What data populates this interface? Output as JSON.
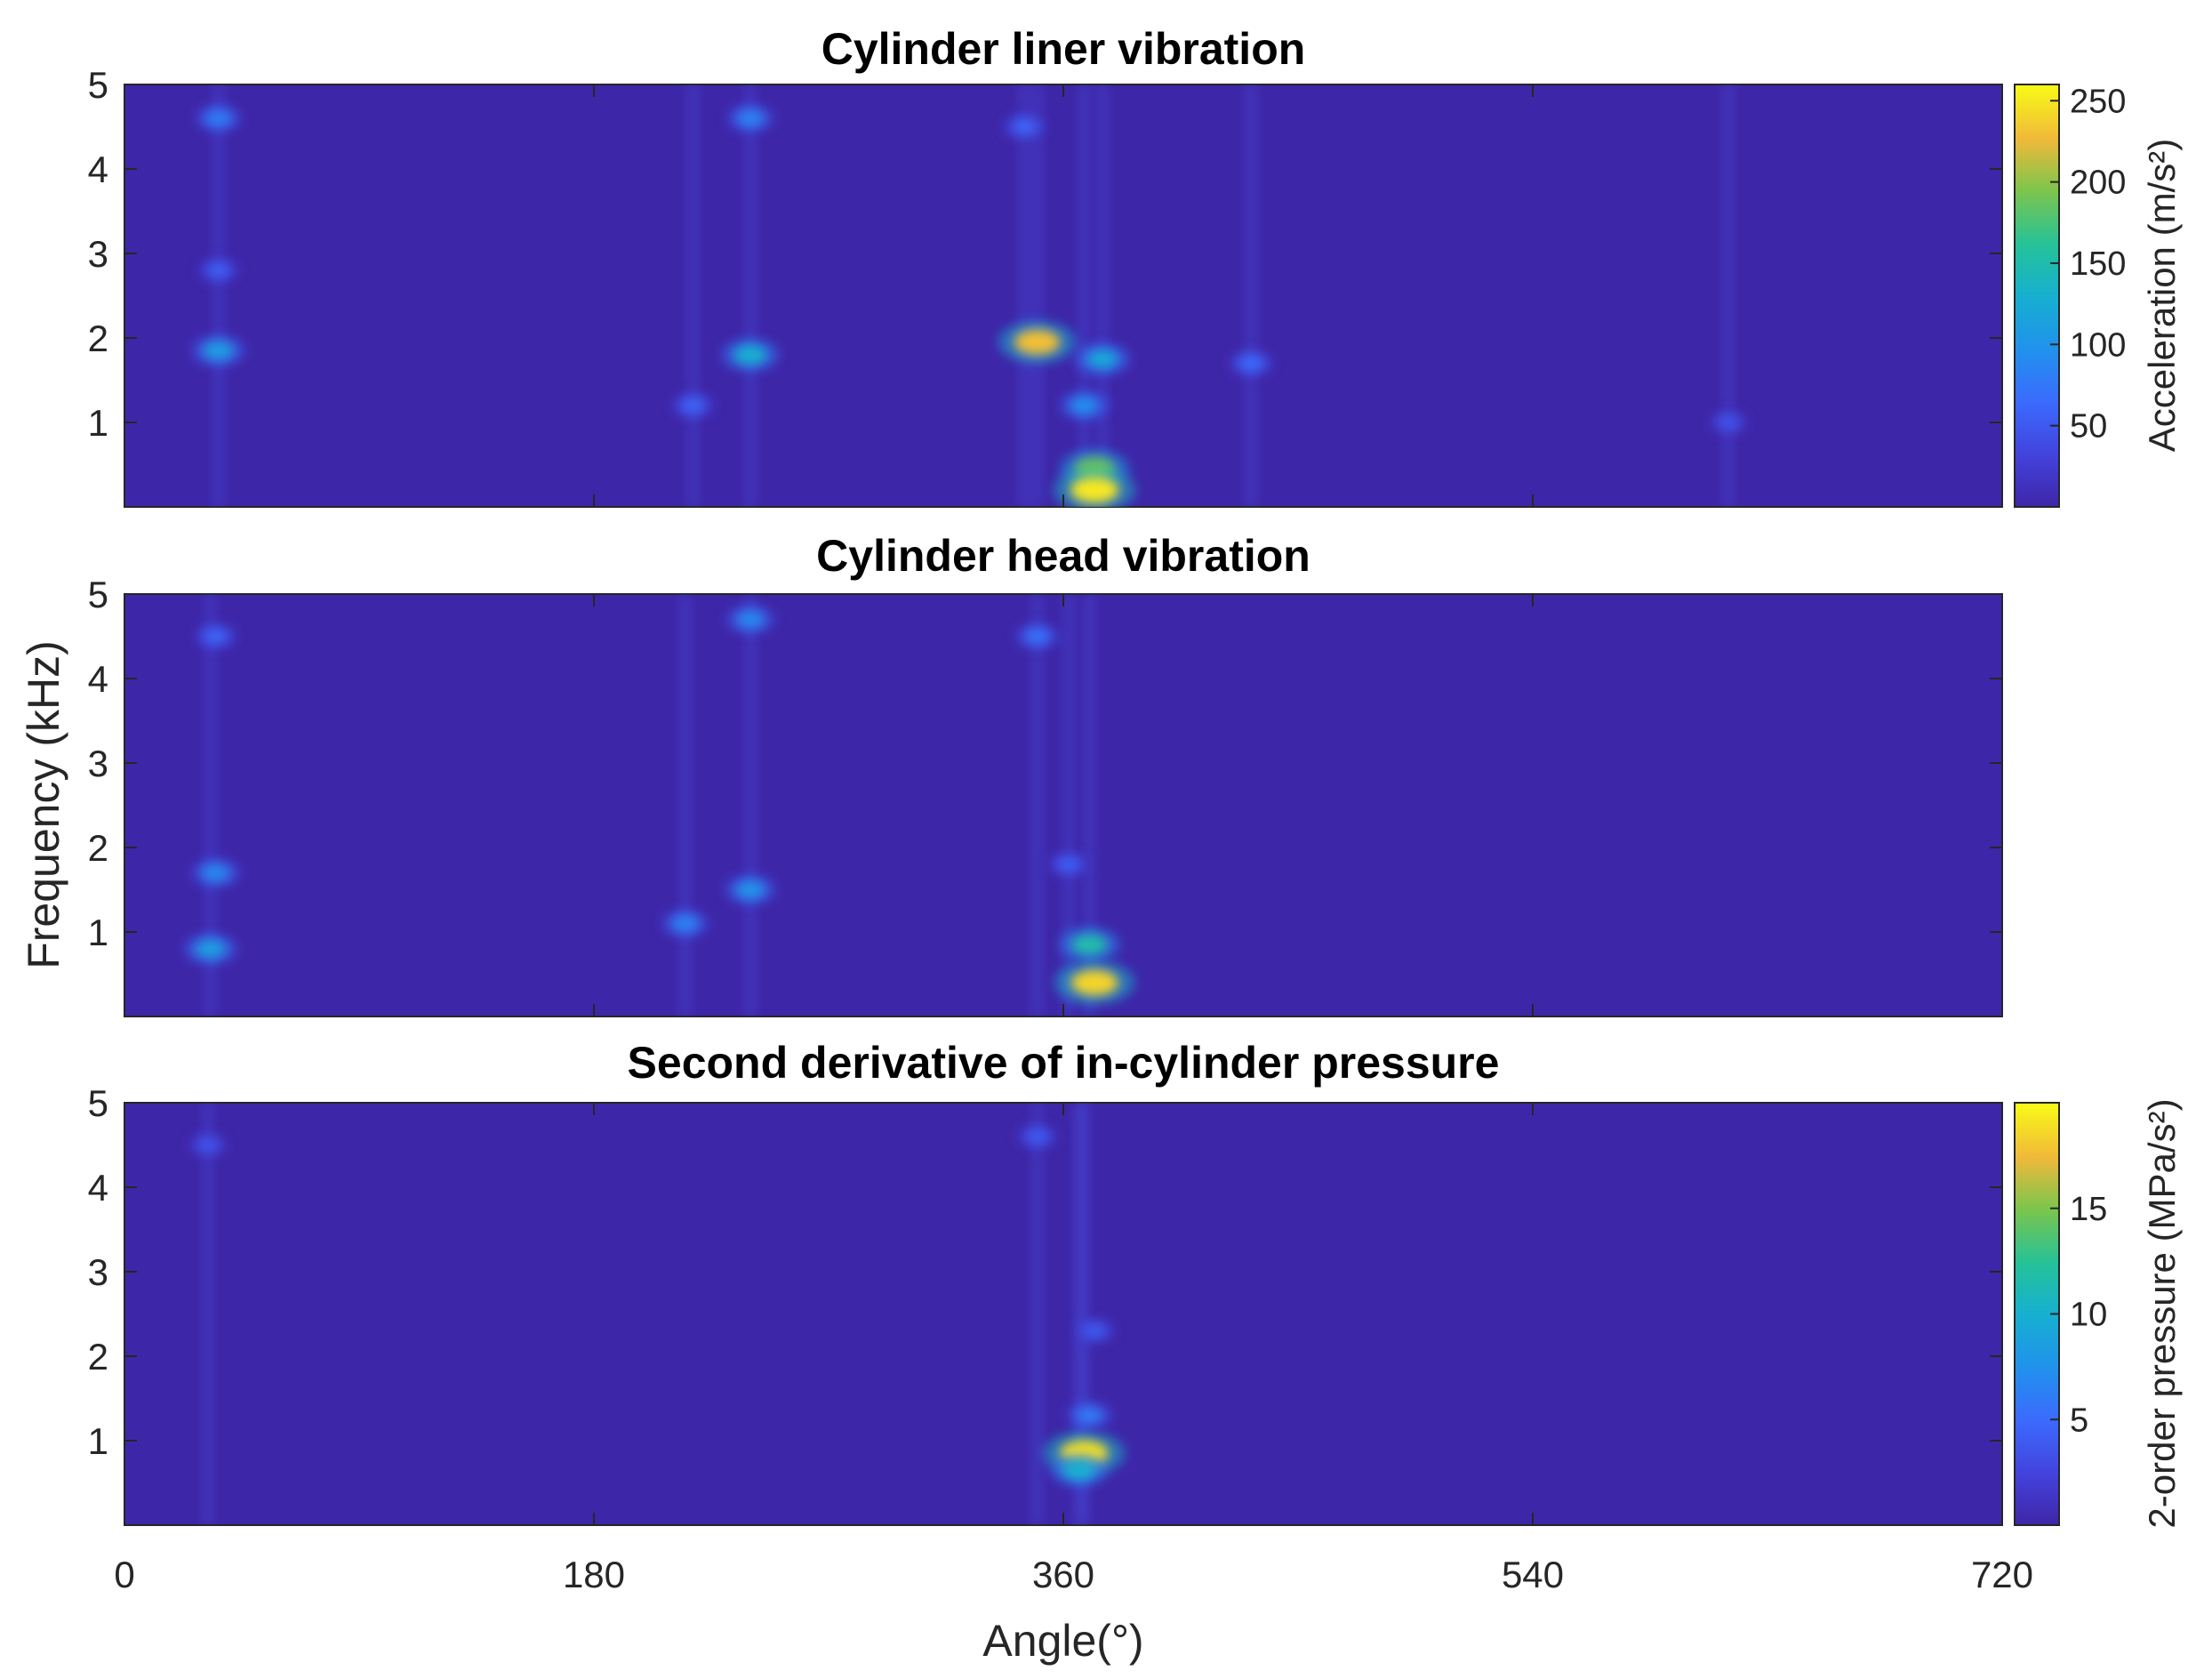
{
  "chart_data": {
    "type": "heatmap",
    "shared": {
      "xlabel": "Angle(°)",
      "ylabel": "Frequency (kHz)",
      "xlim": [
        0,
        720
      ],
      "ylim": [
        0,
        5
      ],
      "x_ticks": [
        "0",
        "180",
        "360",
        "540",
        "720"
      ],
      "y_ticks": [
        "1",
        "2",
        "3",
        "4",
        "5"
      ],
      "colormap": "parula",
      "background_color": "#3e26a8"
    },
    "panels": [
      {
        "title": "Cylinder liner vibration",
        "colorbar": {
          "label": "Acceleration (m/s²)",
          "min": 0,
          "max": 260,
          "ticks": [
            "50",
            "100",
            "150",
            "200",
            "250"
          ]
        },
        "hotspots": [
          {
            "angle": 36,
            "freq": 1.85,
            "value": 110
          },
          {
            "angle": 36,
            "freq": 4.6,
            "value": 80
          },
          {
            "angle": 36,
            "freq": 2.8,
            "value": 55
          },
          {
            "angle": 240,
            "freq": 1.8,
            "value": 130
          },
          {
            "angle": 240,
            "freq": 4.6,
            "value": 85
          },
          {
            "angle": 218,
            "freq": 1.2,
            "value": 60
          },
          {
            "angle": 350,
            "freq": 1.95,
            "value": 230
          },
          {
            "angle": 375,
            "freq": 1.75,
            "value": 120
          },
          {
            "angle": 368,
            "freq": 1.2,
            "value": 95
          },
          {
            "angle": 372,
            "freq": 0.45,
            "value": 190
          },
          {
            "angle": 372,
            "freq": 0.2,
            "value": 250
          },
          {
            "angle": 345,
            "freq": 4.5,
            "value": 60
          },
          {
            "angle": 432,
            "freq": 1.7,
            "value": 65
          },
          {
            "angle": 615,
            "freq": 1.0,
            "value": 45
          }
        ]
      },
      {
        "title": "Cylinder head vibration",
        "hotspots": [
          {
            "angle": 33,
            "freq": 0.8,
            "value": 110
          },
          {
            "angle": 35,
            "freq": 1.7,
            "value": 90
          },
          {
            "angle": 35,
            "freq": 4.5,
            "value": 60
          },
          {
            "angle": 215,
            "freq": 1.1,
            "value": 85
          },
          {
            "angle": 240,
            "freq": 1.5,
            "value": 100
          },
          {
            "angle": 240,
            "freq": 4.7,
            "value": 90
          },
          {
            "angle": 350,
            "freq": 4.5,
            "value": 70
          },
          {
            "angle": 362,
            "freq": 1.8,
            "value": 55
          },
          {
            "angle": 370,
            "freq": 0.85,
            "value": 150
          },
          {
            "angle": 372,
            "freq": 0.4,
            "value": 240
          }
        ]
      },
      {
        "title": "Second derivative of in-cylinder pressure",
        "colorbar": {
          "label": "2-order pressure (MPa/s²)",
          "min": 0,
          "max": 20,
          "ticks": [
            "5",
            "10",
            "15"
          ]
        },
        "hotspots": [
          {
            "angle": 368,
            "freq": 0.85,
            "value": 19
          },
          {
            "angle": 366,
            "freq": 0.65,
            "value": 10
          },
          {
            "angle": 370,
            "freq": 1.3,
            "value": 6
          },
          {
            "angle": 372,
            "freq": 2.3,
            "value": 4
          },
          {
            "angle": 350,
            "freq": 4.6,
            "value": 4
          },
          {
            "angle": 32,
            "freq": 4.5,
            "value": 3.5
          }
        ]
      }
    ]
  }
}
